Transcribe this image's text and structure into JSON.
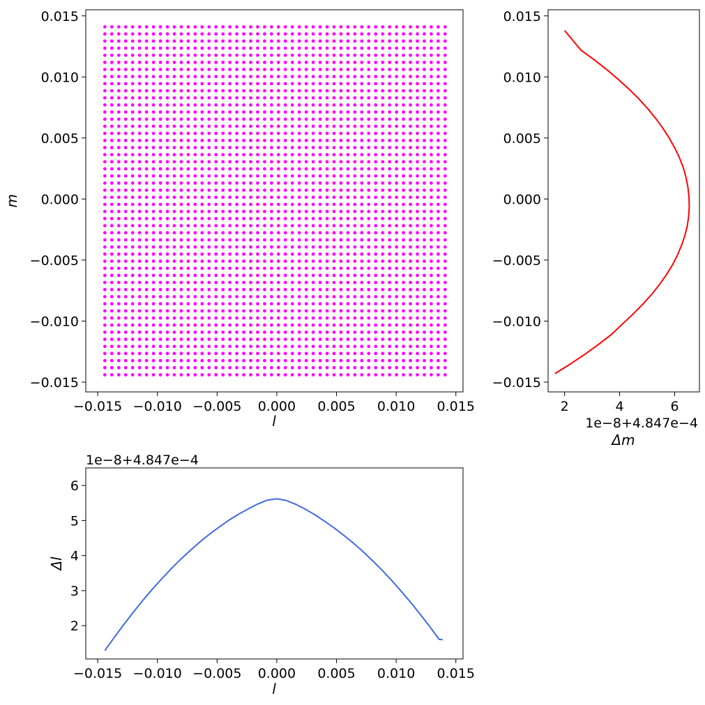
{
  "chart_data": [
    {
      "id": "grid",
      "type": "scatter",
      "xlabel": "l",
      "ylabel": "m",
      "xlim": [
        -0.016,
        0.0156
      ],
      "ylim": [
        -0.0158,
        0.0155
      ],
      "xticks": [
        -0.015,
        -0.01,
        -0.005,
        0.0,
        0.005,
        0.01,
        0.015
      ],
      "xtick_labels": [
        "−0.015",
        "−0.010",
        "−0.005",
        "0.000",
        "0.005",
        "0.010",
        "0.015"
      ],
      "yticks": [
        -0.015,
        -0.01,
        -0.005,
        0.0,
        0.005,
        0.01,
        0.015
      ],
      "ytick_labels": [
        "−0.015",
        "−0.010",
        "−0.005",
        "0.000",
        "0.005",
        "0.010",
        "0.015"
      ],
      "grid": false,
      "color": "#ff00ff",
      "points": {
        "x_start": -0.0144,
        "x_end": 0.0141,
        "x_count": 50,
        "y_start": -0.0144,
        "y_end": 0.0141,
        "y_count": 50
      }
    },
    {
      "id": "delta-m",
      "type": "line",
      "xlabel": "Δm",
      "ylabel": "",
      "offset_text": "1e−8+4.847e−4",
      "xlim": [
        1.4,
        6.9
      ],
      "ylim": [
        -0.0158,
        0.0155
      ],
      "xticks": [
        2,
        4,
        6
      ],
      "xtick_labels": [
        "2",
        "4",
        "6"
      ],
      "yticks": [
        -0.015,
        -0.01,
        -0.005,
        0.0,
        0.005,
        0.01,
        0.015
      ],
      "ytick_labels": [
        "−0.015",
        "−0.010",
        "−0.005",
        "0.000",
        "0.005",
        "0.010",
        "0.015"
      ],
      "grid": false,
      "color": "#ff0000",
      "series": [
        {
          "x": [
            1.65,
            2.22,
            2.75,
            3.24,
            3.7,
            4.12,
            4.5,
            4.85,
            5.17,
            5.45,
            5.7,
            5.92,
            6.1,
            6.25,
            6.37,
            6.46,
            6.51,
            6.53,
            6.52,
            6.48,
            6.41,
            6.31,
            6.17,
            6.0,
            5.8,
            5.57,
            5.31,
            5.02,
            4.7,
            4.34,
            3.95,
            3.53,
            3.08,
            2.59,
            2.0
          ],
          "y": [
            -0.0143,
            -0.0135,
            -0.0127,
            -0.0119,
            -0.0111,
            -0.0102,
            -0.0094,
            -0.0086,
            -0.0078,
            -0.007,
            -0.0062,
            -0.0054,
            -0.0046,
            -0.0038,
            -0.003,
            -0.0022,
            -0.0014,
            -0.0006,
            0.0002,
            0.001,
            0.0018,
            0.0026,
            0.0034,
            0.0042,
            0.005,
            0.0058,
            0.0066,
            0.0074,
            0.0082,
            0.009,
            0.0098,
            0.0106,
            0.0114,
            0.0122,
            0.0138
          ]
        }
      ]
    },
    {
      "id": "delta-l",
      "type": "line",
      "xlabel": "l",
      "ylabel": "Δl",
      "offset_text": "1e−8+4.847e−4",
      "xlim": [
        -0.016,
        0.0156
      ],
      "ylim": [
        1.05,
        6.5
      ],
      "xticks": [
        -0.015,
        -0.01,
        -0.005,
        0.0,
        0.005,
        0.01,
        0.015
      ],
      "xtick_labels": [
        "−0.015",
        "−0.010",
        "−0.005",
        "0.000",
        "0.005",
        "0.010",
        "0.015"
      ],
      "yticks": [
        2,
        3,
        4,
        5,
        6
      ],
      "ytick_labels": [
        "2",
        "3",
        "4",
        "5",
        "6"
      ],
      "grid": false,
      "color": "#4169e1",
      "series": [
        {
          "x": [
            -0.0144,
            -0.0136,
            -0.0128,
            -0.012,
            -0.0112,
            -0.0104,
            -0.0096,
            -0.0088,
            -0.008,
            -0.0072,
            -0.0064,
            -0.0056,
            -0.0048,
            -0.004,
            -0.0032,
            -0.0024,
            -0.0016,
            -0.0008,
            0.0,
            0.0008,
            0.0016,
            0.0024,
            0.0032,
            0.004,
            0.0048,
            0.0056,
            0.0064,
            0.0072,
            0.008,
            0.0088,
            0.0096,
            0.0104,
            0.0112,
            0.012,
            0.0128,
            0.0136,
            0.0139
          ],
          "y": [
            1.29,
            1.67,
            2.04,
            2.39,
            2.73,
            3.05,
            3.35,
            3.64,
            3.91,
            4.16,
            4.4,
            4.62,
            4.82,
            5.01,
            5.18,
            5.33,
            5.47,
            5.58,
            5.62,
            5.57,
            5.46,
            5.32,
            5.16,
            4.98,
            4.79,
            4.58,
            4.36,
            4.12,
            3.86,
            3.59,
            3.3,
            2.99,
            2.67,
            2.33,
            1.98,
            1.61,
            1.6
          ]
        }
      ]
    }
  ]
}
